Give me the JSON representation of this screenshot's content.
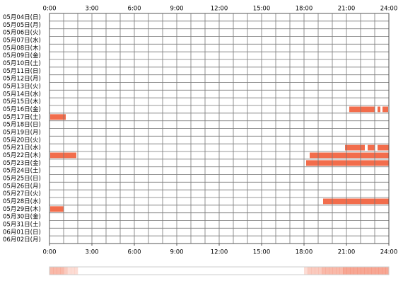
{
  "chart_data": {
    "type": "timeline",
    "categories": [
      "05月04日(日)",
      "05月05日(月)",
      "05月06日(火)",
      "05月07日(水)",
      "05月08日(木)",
      "05月09日(金)",
      "05月10日(土)",
      "05月11日(日)",
      "05月12日(月)",
      "05月13日(火)",
      "05月14日(水)",
      "05月15日(木)",
      "05月16日(金)",
      "05月17日(土)",
      "05月18日(日)",
      "05月19日(月)",
      "05月20日(火)",
      "05月21日(水)",
      "05月22日(木)",
      "05月23日(金)",
      "05月24日(土)",
      "05月25日(日)",
      "05月26日(月)",
      "05月27日(火)",
      "05月28日(水)",
      "05月29日(木)",
      "05月30日(金)",
      "05月31日(土)",
      "06月01日(日)",
      "06月02日(月)"
    ],
    "spans": [
      [],
      [],
      [],
      [],
      [],
      [],
      [],
      [],
      [],
      [],
      [],
      [],
      [
        [
          21.2,
          23.0
        ],
        [
          23.2,
          23.4
        ],
        [
          23.55,
          23.95
        ]
      ],
      [
        [
          0.05,
          1.15
        ]
      ],
      [],
      [],
      [],
      [
        [
          20.9,
          22.3
        ],
        [
          22.5,
          23.0
        ],
        [
          23.2,
          24
        ]
      ],
      [
        [
          0.05,
          1.9
        ],
        [
          18.4,
          24
        ]
      ],
      [
        [
          18.15,
          24
        ]
      ],
      [],
      [],
      [],
      [],
      [
        [
          19.35,
          24
        ]
      ],
      [
        [
          0.05,
          1.0
        ]
      ],
      [],
      [],
      [],
      []
    ],
    "color": "#f26d4c",
    "xlim": [
      0,
      24
    ],
    "grid_step": 1,
    "xticks": [
      {
        "value": 0,
        "label": "0:00"
      },
      {
        "value": 3,
        "label": "3:00"
      },
      {
        "value": 6,
        "label": "6:00"
      },
      {
        "value": 9,
        "label": "9:00"
      },
      {
        "value": 12,
        "label": "12:00"
      },
      {
        "value": 15,
        "label": "15:00"
      },
      {
        "value": 18,
        "label": "18:00"
      },
      {
        "value": 21,
        "label": "21:00"
      },
      {
        "value": 24,
        "label": "24:00"
      }
    ]
  }
}
